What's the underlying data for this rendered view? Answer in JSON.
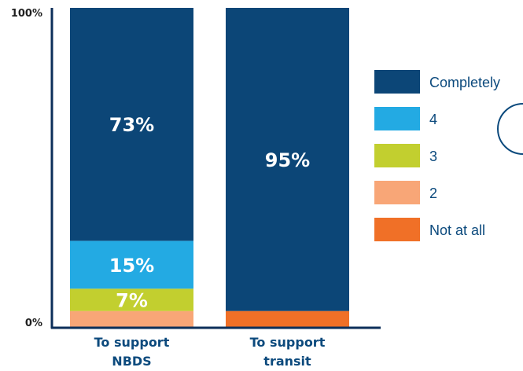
{
  "chart_data": {
    "type": "bar",
    "stacked": true,
    "categories": [
      [
        "To support",
        "NBDS"
      ],
      [
        "To support",
        "transit"
      ]
    ],
    "y_ticks": [
      "100%",
      "0%"
    ],
    "ylim": [
      0,
      100
    ],
    "legend_position": "right",
    "series": [
      {
        "name": "Not at all",
        "color": "#f07027",
        "values": [
          0,
          5
        ],
        "labels": [
          "",
          ""
        ]
      },
      {
        "name": "2",
        "color": "#f8a677",
        "values": [
          5,
          0
        ],
        "labels": [
          "",
          ""
        ]
      },
      {
        "name": "3",
        "color": "#c2cf2f",
        "values": [
          7,
          0
        ],
        "labels": [
          "7%",
          ""
        ]
      },
      {
        "name": "4",
        "color": "#23aae3",
        "values": [
          15,
          0
        ],
        "labels": [
          "15%",
          ""
        ]
      },
      {
        "name": "Completely",
        "color": "#0c4677",
        "values": [
          73,
          95
        ],
        "labels": [
          "73%",
          "95%"
        ]
      }
    ],
    "legend_order": [
      "Completely",
      "4",
      "3",
      "2",
      "Not at all"
    ]
  }
}
